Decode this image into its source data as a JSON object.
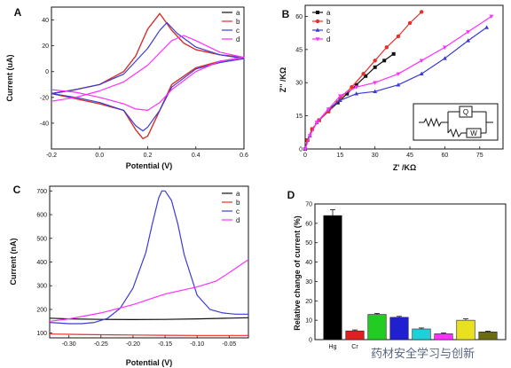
{
  "chart_data": [
    {
      "panel": "A",
      "type": "line",
      "xlabel": "Potential (V)",
      "ylabel": "Current (uA)",
      "xlim": [
        -0.2,
        0.6
      ],
      "ylim": [
        -60,
        50
      ],
      "xticks": [
        -0.2,
        0.0,
        0.2,
        0.4,
        0.6
      ],
      "xtick_labels": [
        "-0.2",
        "0.0",
        "0.2",
        "0.4",
        "0.6"
      ],
      "yticks": [
        -40,
        -20,
        0,
        20,
        40
      ],
      "ytick_labels": [
        "-40",
        "-20",
        "0",
        "20",
        "40"
      ],
      "legend_position": "top-right",
      "series": [
        {
          "name": "a",
          "color": "#111111",
          "x": [
            -0.2,
            -0.1,
            0.0,
            0.1,
            0.15,
            0.2,
            0.25,
            0.3,
            0.35,
            0.4,
            0.5,
            0.6,
            0.5,
            0.4,
            0.3,
            0.25,
            0.2,
            0.18,
            0.15,
            0.1,
            0.0,
            -0.1,
            -0.2
          ],
          "y": [
            -17,
            -14,
            -10,
            0,
            12,
            33,
            45,
            32,
            22,
            17,
            13,
            11,
            8,
            3,
            -10,
            -30,
            -50,
            -52,
            -45,
            -30,
            -25,
            -21,
            -17
          ]
        },
        {
          "name": "b",
          "color": "#e8302a",
          "x": [
            -0.2,
            -0.1,
            0.0,
            0.1,
            0.15,
            0.2,
            0.25,
            0.3,
            0.35,
            0.4,
            0.5,
            0.6,
            0.5,
            0.4,
            0.3,
            0.25,
            0.2,
            0.18,
            0.15,
            0.1,
            0.0,
            -0.1,
            -0.2
          ],
          "y": [
            -17,
            -14,
            -10,
            0,
            12,
            33,
            45,
            32,
            22,
            17,
            13,
            11,
            8,
            3,
            -10,
            -30,
            -50,
            -52,
            -45,
            -30,
            -25,
            -21,
            -17
          ]
        },
        {
          "name": "c",
          "color": "#3a3ad6",
          "x": [
            -0.2,
            -0.1,
            0.0,
            0.1,
            0.2,
            0.25,
            0.28,
            0.32,
            0.4,
            0.5,
            0.6,
            0.5,
            0.4,
            0.3,
            0.25,
            0.2,
            0.18,
            0.15,
            0.1,
            0.0,
            -0.1,
            -0.2
          ],
          "y": [
            -17,
            -14,
            -10,
            -2,
            18,
            32,
            38,
            30,
            19,
            13,
            10,
            7,
            2,
            -12,
            -30,
            -43,
            -46,
            -42,
            -30,
            -24,
            -20,
            -17
          ]
        },
        {
          "name": "d",
          "color": "#ff30ff",
          "x": [
            -0.2,
            -0.1,
            0.0,
            0.1,
            0.2,
            0.3,
            0.35,
            0.4,
            0.5,
            0.6,
            0.5,
            0.4,
            0.3,
            0.25,
            0.2,
            0.15,
            0.1,
            0.0,
            -0.1,
            -0.2
          ],
          "y": [
            -23,
            -20,
            -15,
            -8,
            5,
            24,
            28,
            24,
            15,
            11,
            8,
            0,
            -14,
            -24,
            -30,
            -29,
            -25,
            -20,
            -16,
            -14
          ]
        }
      ]
    },
    {
      "panel": "B",
      "type": "line",
      "xlabel": "Z' /KΩ",
      "ylabel": "Z'' /KΩ",
      "xlim": [
        0,
        85
      ],
      "ylim": [
        0,
        65
      ],
      "xticks": [
        0,
        15,
        30,
        45,
        60,
        75
      ],
      "xtick_labels": [
        "0",
        "15",
        "30",
        "45",
        "60",
        "75"
      ],
      "yticks": [
        0,
        15,
        30,
        45,
        60
      ],
      "ytick_labels": [
        "0",
        "15",
        "30",
        "45",
        "60"
      ],
      "legend_position": "top-left",
      "inset_labels": {
        "q": "Q",
        "w": "W"
      },
      "series": [
        {
          "name": "a",
          "color": "#111111",
          "marker": "square",
          "x": [
            0,
            1,
            3,
            6,
            10,
            14,
            18,
            22,
            26,
            30,
            34,
            38
          ],
          "y": [
            0,
            4,
            9,
            13,
            17,
            21,
            25,
            29,
            33,
            37,
            40,
            43
          ]
        },
        {
          "name": "b",
          "color": "#e8302a",
          "marker": "circle",
          "x": [
            0,
            1,
            3,
            6,
            10,
            15,
            20,
            25,
            30,
            35,
            40,
            45,
            50
          ],
          "y": [
            0,
            4,
            9,
            13,
            17,
            23,
            28,
            34,
            40,
            46,
            51,
            57,
            62
          ]
        },
        {
          "name": "c",
          "color": "#3a3ad6",
          "marker": "triangle-up",
          "x": [
            0,
            2,
            5,
            10,
            15,
            22,
            30,
            40,
            50,
            60,
            70,
            78
          ],
          "y": [
            0,
            6,
            12,
            18,
            22,
            25,
            26,
            29,
            34,
            41,
            49,
            55
          ]
        },
        {
          "name": "d",
          "color": "#ff30ff",
          "marker": "triangle-down",
          "x": [
            0,
            2,
            5,
            10,
            15,
            22,
            30,
            40,
            50,
            60,
            70,
            80
          ],
          "y": [
            0,
            6,
            12,
            18,
            24,
            28,
            30,
            34,
            40,
            46,
            53,
            60
          ]
        }
      ]
    },
    {
      "panel": "C",
      "type": "line",
      "xlabel": "Potential (V)",
      "ylabel": "Current (nA)",
      "xlim": [
        -0.33,
        -0.02
      ],
      "ylim": [
        80,
        720
      ],
      "xticks": [
        -0.3,
        -0.25,
        -0.2,
        -0.15,
        -0.1,
        -0.05
      ],
      "xtick_labels": [
        "-0.30",
        "-0.25",
        "-0.20",
        "-0.15",
        "-0.10",
        "-0.05"
      ],
      "yticks": [
        100,
        200,
        300,
        400,
        500,
        600,
        700
      ],
      "ytick_labels": [
        "100",
        "200",
        "300",
        "400",
        "500",
        "600",
        "700"
      ],
      "legend_position": "top-right",
      "series": [
        {
          "name": "a",
          "color": "#111111",
          "x": [
            -0.33,
            -0.3,
            -0.25,
            -0.2,
            -0.15,
            -0.1,
            -0.05,
            -0.02
          ],
          "y": [
            163,
            160,
            158,
            157,
            158,
            160,
            163,
            165
          ]
        },
        {
          "name": "b",
          "color": "#e8302a",
          "x": [
            -0.33,
            -0.3,
            -0.25,
            -0.2,
            -0.15,
            -0.1,
            -0.05,
            -0.02
          ],
          "y": [
            96,
            95,
            93,
            92,
            91,
            90,
            90,
            90
          ]
        },
        {
          "name": "c",
          "color": "#3a3ad6",
          "x": [
            -0.33,
            -0.3,
            -0.28,
            -0.26,
            -0.24,
            -0.22,
            -0.2,
            -0.18,
            -0.17,
            -0.16,
            -0.155,
            -0.15,
            -0.14,
            -0.13,
            -0.12,
            -0.1,
            -0.08,
            -0.06,
            -0.04,
            -0.02
          ],
          "y": [
            145,
            140,
            140,
            145,
            162,
            205,
            290,
            440,
            560,
            670,
            700,
            700,
            660,
            560,
            430,
            260,
            200,
            185,
            180,
            180
          ]
        },
        {
          "name": "d",
          "color": "#ff30ff",
          "x": [
            -0.33,
            -0.3,
            -0.25,
            -0.2,
            -0.15,
            -0.1,
            -0.07,
            -0.05,
            -0.02
          ],
          "y": [
            150,
            160,
            185,
            220,
            265,
            295,
            320,
            355,
            410
          ]
        }
      ]
    },
    {
      "panel": "D",
      "type": "bar",
      "xlabel": "",
      "ylabel": "Relative change of current (%)",
      "ylim": [
        0,
        70
      ],
      "yticks": [
        0,
        10,
        20,
        30,
        40,
        50,
        60,
        70
      ],
      "ytick_labels": [
        "0",
        "10",
        "20",
        "30",
        "40",
        "50",
        "60",
        "70"
      ],
      "categories": [
        "Hg",
        "Cr",
        "",
        "",
        "",
        "",
        "",
        ""
      ],
      "values": [
        64,
        4.5,
        13,
        11.5,
        5.5,
        3,
        10,
        4
      ],
      "errors": [
        3,
        0.5,
        0.5,
        0.5,
        0.5,
        0.5,
        0.7,
        0.4
      ],
      "colors": [
        "#000000",
        "#e02020",
        "#22cc22",
        "#2020d0",
        "#20d0d8",
        "#ff30ff",
        "#e8e020",
        "#6b6b10"
      ]
    }
  ],
  "watermark": "药材安全学习与创新"
}
